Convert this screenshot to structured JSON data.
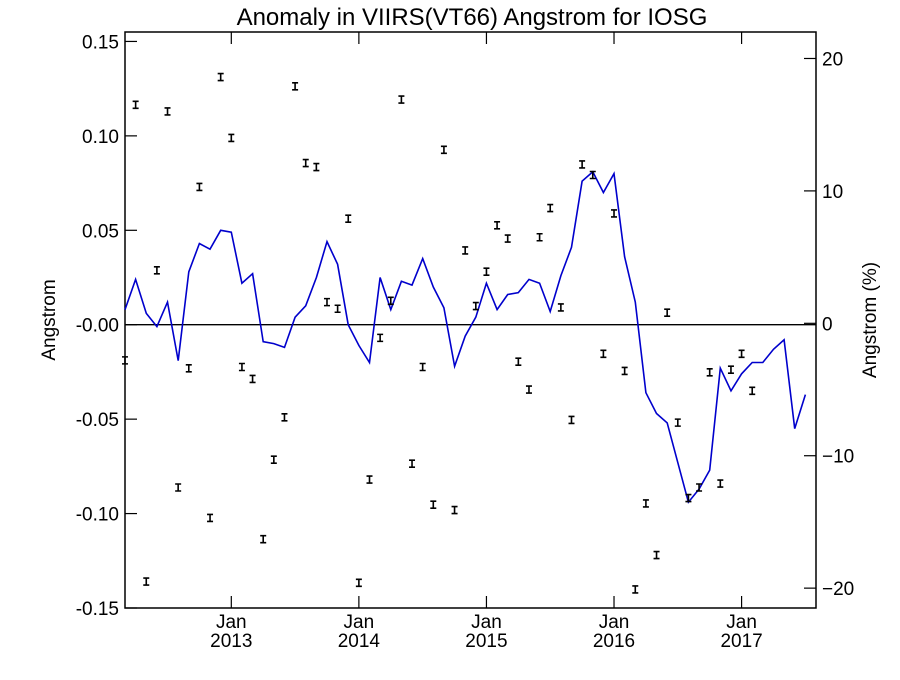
{
  "chart_data": {
    "type": "line",
    "title": "Anomaly in VIIRS(VT66) Angstrom for IOSG",
    "ylabel_left": "Angstrom",
    "ylabel_right": "Angstrom (%)",
    "xlabel": "",
    "ylim_left": [
      -0.15,
      0.155
    ],
    "ylim_right": [
      -21.5,
      22
    ],
    "xlim": [
      "2012-03",
      "2017-08"
    ],
    "grid": false,
    "zero_line": true,
    "line_color": "#0000cc",
    "marker_color": "#000000",
    "left_ticks": [
      "0.15",
      "0.10",
      "0.05",
      "-0.00",
      "-0.05",
      "-0.10",
      "-0.15"
    ],
    "left_tick_values": [
      0.15,
      0.1,
      0.05,
      0.0,
      -0.05,
      -0.1,
      -0.15
    ],
    "right_ticks": [
      "20",
      "10",
      "0",
      "−10",
      "−20"
    ],
    "right_tick_values": [
      20,
      10,
      0,
      -10,
      -20
    ],
    "x_ticks": [
      {
        "label_top": "Jan",
        "label_bottom": "2013",
        "date": "2013-01"
      },
      {
        "label_top": "Jan",
        "label_bottom": "2014",
        "date": "2014-01"
      },
      {
        "label_top": "Jan",
        "label_bottom": "2015",
        "date": "2015-01"
      },
      {
        "label_top": "Jan",
        "label_bottom": "2016",
        "date": "2016-01"
      },
      {
        "label_top": "Jan",
        "label_bottom": "2017",
        "date": "2017-01"
      }
    ],
    "series": [
      {
        "kind": "line",
        "axis": "left",
        "points": [
          {
            "x": "2012-03",
            "y": 0.008
          },
          {
            "x": "2012-04",
            "y": 0.024
          },
          {
            "x": "2012-05",
            "y": 0.006
          },
          {
            "x": "2012-06",
            "y": -0.001
          },
          {
            "x": "2012-07",
            "y": 0.012
          },
          {
            "x": "2012-08",
            "y": -0.019
          },
          {
            "x": "2012-09",
            "y": 0.028
          },
          {
            "x": "2012-10",
            "y": 0.043
          },
          {
            "x": "2012-11",
            "y": 0.04
          },
          {
            "x": "2012-12",
            "y": 0.05
          },
          {
            "x": "2013-01",
            "y": 0.049
          },
          {
            "x": "2013-02",
            "y": 0.022
          },
          {
            "x": "2013-03",
            "y": 0.027
          },
          {
            "x": "2013-04",
            "y": -0.009
          },
          {
            "x": "2013-05",
            "y": -0.01
          },
          {
            "x": "2013-06",
            "y": -0.012
          },
          {
            "x": "2013-07",
            "y": 0.004
          },
          {
            "x": "2013-08",
            "y": 0.01
          },
          {
            "x": "2013-09",
            "y": 0.025
          },
          {
            "x": "2013-10",
            "y": 0.044
          },
          {
            "x": "2013-11",
            "y": 0.032
          },
          {
            "x": "2013-12",
            "y": 0.0
          },
          {
            "x": "2014-01",
            "y": -0.011
          },
          {
            "x": "2014-02",
            "y": -0.02
          },
          {
            "x": "2014-03",
            "y": 0.025
          },
          {
            "x": "2014-04",
            "y": 0.008
          },
          {
            "x": "2014-05",
            "y": 0.023
          },
          {
            "x": "2014-06",
            "y": 0.021
          },
          {
            "x": "2014-07",
            "y": 0.035
          },
          {
            "x": "2014-08",
            "y": 0.02
          },
          {
            "x": "2014-09",
            "y": 0.009
          },
          {
            "x": "2014-10",
            "y": -0.022
          },
          {
            "x": "2014-11",
            "y": -0.006
          },
          {
            "x": "2014-12",
            "y": 0.004
          },
          {
            "x": "2015-01",
            "y": 0.022
          },
          {
            "x": "2015-02",
            "y": 0.008
          },
          {
            "x": "2015-03",
            "y": 0.016
          },
          {
            "x": "2015-04",
            "y": 0.017
          },
          {
            "x": "2015-05",
            "y": 0.024
          },
          {
            "x": "2015-06",
            "y": 0.022
          },
          {
            "x": "2015-07",
            "y": 0.007
          },
          {
            "x": "2015-08",
            "y": 0.026
          },
          {
            "x": "2015-09",
            "y": 0.041
          },
          {
            "x": "2015-10",
            "y": 0.076
          },
          {
            "x": "2015-11",
            "y": 0.081
          },
          {
            "x": "2015-12",
            "y": 0.07
          },
          {
            "x": "2016-01",
            "y": 0.08
          },
          {
            "x": "2016-02",
            "y": 0.036
          },
          {
            "x": "2016-03",
            "y": 0.012
          },
          {
            "x": "2016-04",
            "y": -0.036
          },
          {
            "x": "2016-05",
            "y": -0.047
          },
          {
            "x": "2016-06",
            "y": -0.052
          },
          {
            "x": "2016-07",
            "y": -0.073
          },
          {
            "x": "2016-08",
            "y": -0.094
          },
          {
            "x": "2016-09",
            "y": -0.087
          },
          {
            "x": "2016-10",
            "y": -0.077
          },
          {
            "x": "2016-11",
            "y": -0.023
          },
          {
            "x": "2016-12",
            "y": -0.035
          },
          {
            "x": "2017-01",
            "y": -0.026
          },
          {
            "x": "2017-02",
            "y": -0.02
          },
          {
            "x": "2017-03",
            "y": -0.02
          },
          {
            "x": "2017-04",
            "y": -0.013
          },
          {
            "x": "2017-05",
            "y": -0.008
          },
          {
            "x": "2017-06",
            "y": -0.055
          },
          {
            "x": "2017-07",
            "y": -0.037
          }
        ]
      },
      {
        "kind": "errorbar",
        "axis": "right",
        "points": [
          {
            "x": "2012-03",
            "y": -2.8
          },
          {
            "x": "2012-04",
            "y": 16.5
          },
          {
            "x": "2012-05",
            "y": -19.5
          },
          {
            "x": "2012-06",
            "y": 4.0
          },
          {
            "x": "2012-07",
            "y": 16.0
          },
          {
            "x": "2012-08",
            "y": -12.4
          },
          {
            "x": "2012-09",
            "y": -3.4
          },
          {
            "x": "2012-10",
            "y": 10.3
          },
          {
            "x": "2012-11",
            "y": -14.7
          },
          {
            "x": "2012-12",
            "y": 18.6
          },
          {
            "x": "2013-01",
            "y": 14.0
          },
          {
            "x": "2013-02",
            "y": -3.3
          },
          {
            "x": "2013-03",
            "y": -4.2
          },
          {
            "x": "2013-04",
            "y": -16.3
          },
          {
            "x": "2013-05",
            "y": -10.3
          },
          {
            "x": "2013-06",
            "y": -7.1
          },
          {
            "x": "2013-07",
            "y": 17.9
          },
          {
            "x": "2013-08",
            "y": 12.1
          },
          {
            "x": "2013-09",
            "y": 11.8
          },
          {
            "x": "2013-10",
            "y": 1.6
          },
          {
            "x": "2013-11",
            "y": 1.1
          },
          {
            "x": "2013-12",
            "y": 7.9
          },
          {
            "x": "2014-01",
            "y": -19.6
          },
          {
            "x": "2014-02",
            "y": -11.8
          },
          {
            "x": "2014-03",
            "y": -1.1
          },
          {
            "x": "2014-04",
            "y": 1.7
          },
          {
            "x": "2014-05",
            "y": 16.9
          },
          {
            "x": "2014-06",
            "y": -10.6
          },
          {
            "x": "2014-07",
            "y": -3.3
          },
          {
            "x": "2014-08",
            "y": -13.7
          },
          {
            "x": "2014-09",
            "y": 13.1
          },
          {
            "x": "2014-10",
            "y": -14.1
          },
          {
            "x": "2014-11",
            "y": 5.5
          },
          {
            "x": "2014-12",
            "y": 1.3
          },
          {
            "x": "2015-01",
            "y": 3.9
          },
          {
            "x": "2015-02",
            "y": 7.4
          },
          {
            "x": "2015-03",
            "y": 6.4
          },
          {
            "x": "2015-04",
            "y": -2.9
          },
          {
            "x": "2015-05",
            "y": -5.0
          },
          {
            "x": "2015-06",
            "y": 6.5
          },
          {
            "x": "2015-07",
            "y": 8.7
          },
          {
            "x": "2015-08",
            "y": 1.2
          },
          {
            "x": "2015-09",
            "y": -7.3
          },
          {
            "x": "2015-10",
            "y": 12.0
          },
          {
            "x": "2015-11",
            "y": 11.2
          },
          {
            "x": "2015-12",
            "y": -2.3
          },
          {
            "x": "2016-01",
            "y": 8.3
          },
          {
            "x": "2016-02",
            "y": -3.6
          },
          {
            "x": "2016-03",
            "y": -20.1
          },
          {
            "x": "2016-04",
            "y": -13.6
          },
          {
            "x": "2016-05",
            "y": -17.5
          },
          {
            "x": "2016-06",
            "y": 0.8
          },
          {
            "x": "2016-07",
            "y": -7.5
          },
          {
            "x": "2016-08",
            "y": -13.2
          },
          {
            "x": "2016-09",
            "y": -12.4
          },
          {
            "x": "2016-10",
            "y": -3.7
          },
          {
            "x": "2016-11",
            "y": -12.1
          },
          {
            "x": "2016-12",
            "y": -3.5
          },
          {
            "x": "2017-01",
            "y": -2.3
          },
          {
            "x": "2017-02",
            "y": -5.1
          }
        ]
      }
    ]
  }
}
